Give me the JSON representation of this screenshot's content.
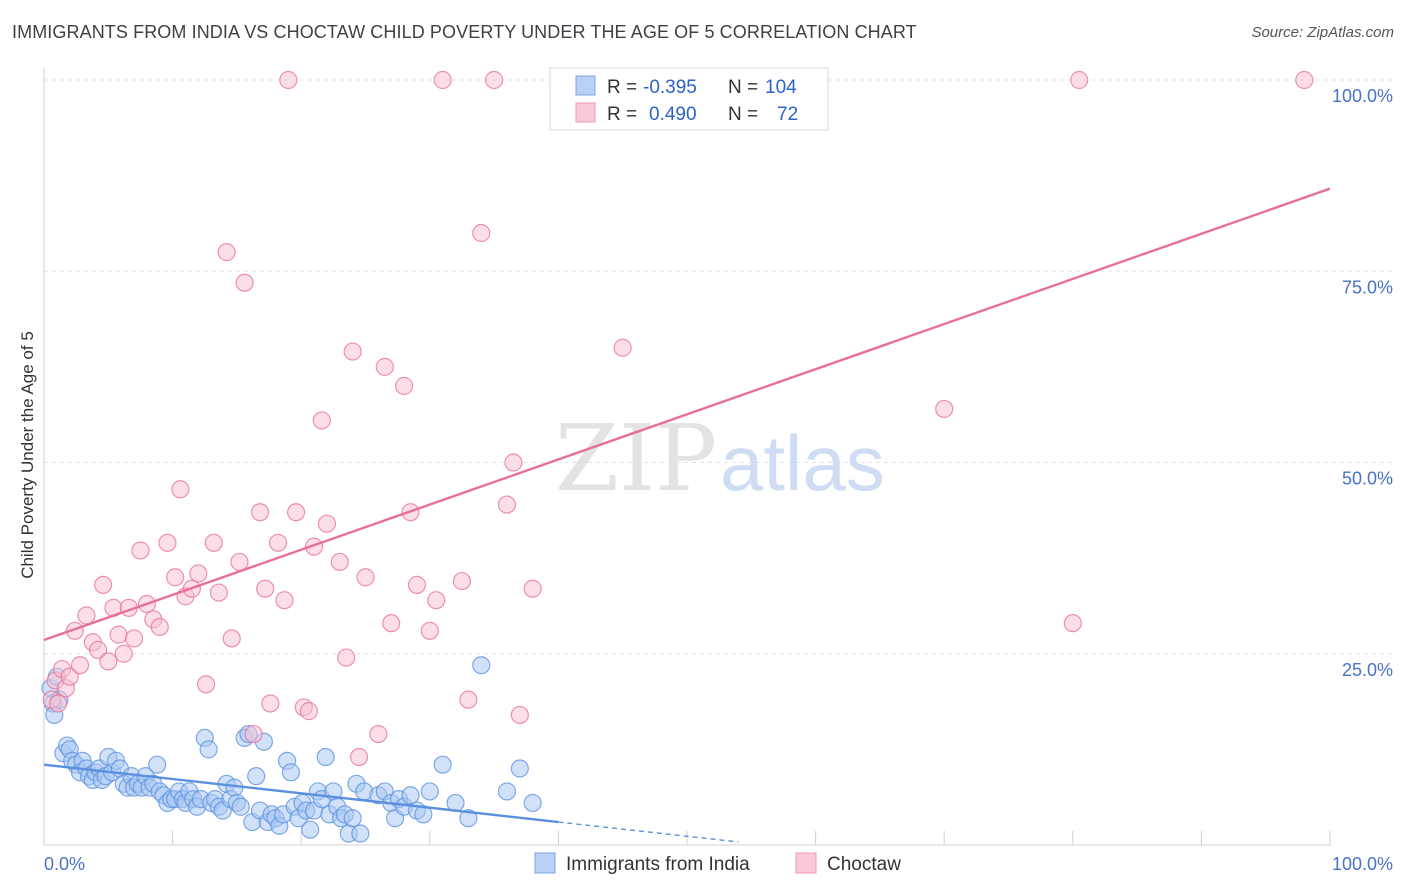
{
  "title": "IMMIGRANTS FROM INDIA VS CHOCTAW CHILD POVERTY UNDER THE AGE OF 5 CORRELATION CHART",
  "source": "Source: ZipAtlas.com",
  "watermark": {
    "zip": "ZIP",
    "atlas": "atlas"
  },
  "legend": {
    "rows": [
      {
        "r_label": "R =",
        "r_value": "-0.395",
        "n_label": "N =",
        "n_value": "104",
        "color": "#8fb4ec"
      },
      {
        "r_label": "R =",
        "r_value": "0.490",
        "n_label": "N =",
        "n_value": "72",
        "color": "#f2a7bf"
      }
    ]
  },
  "bottom_legend": [
    {
      "label": "Immigrants from India",
      "color": "#8fb4ec"
    },
    {
      "label": "Choctaw",
      "color": "#f2a7bf"
    }
  ],
  "chart_data": {
    "type": "scatter",
    "title": "IMMIGRANTS FROM INDIA VS CHOCTAW CHILD POVERTY UNDER THE AGE OF 5 CORRELATION CHART",
    "xlabel": "",
    "ylabel": "Child Poverty Under the Age of 5",
    "xlim": [
      0,
      100
    ],
    "ylim": [
      0,
      100
    ],
    "x_tick_labels": [
      "0.0%",
      "100.0%"
    ],
    "y_tick_labels": [
      "25.0%",
      "50.0%",
      "75.0%",
      "100.0%"
    ],
    "y_ticks": [
      25,
      50,
      75,
      100
    ],
    "grid": true,
    "legend_position": "top-center",
    "series": [
      {
        "name": "Immigrants from India",
        "color": "#5b8fe0",
        "fill": "#a9c8f2",
        "R": -0.395,
        "N": 104,
        "trend": {
          "x": [
            0,
            40
          ],
          "y": [
            10.5,
            3.0
          ]
        },
        "trend_dashed": {
          "x": [
            40,
            54
          ],
          "y": [
            3.0,
            0.4
          ]
        },
        "points": [
          [
            0.5,
            20.5
          ],
          [
            0.7,
            18.5
          ],
          [
            0.8,
            17
          ],
          [
            1,
            22
          ],
          [
            1.2,
            19
          ],
          [
            1.5,
            12
          ],
          [
            1.8,
            13
          ],
          [
            2,
            12.5
          ],
          [
            2.2,
            11
          ],
          [
            2.5,
            10.5
          ],
          [
            2.8,
            9.5
          ],
          [
            3,
            11
          ],
          [
            3.3,
            10
          ],
          [
            3.5,
            9
          ],
          [
            3.8,
            8.5
          ],
          [
            4,
            9.5
          ],
          [
            4.3,
            10
          ],
          [
            4.5,
            8.5
          ],
          [
            4.8,
            9
          ],
          [
            5,
            11.5
          ],
          [
            5.3,
            9.5
          ],
          [
            5.6,
            11
          ],
          [
            5.9,
            10
          ],
          [
            6.2,
            8
          ],
          [
            6.5,
            7.5
          ],
          [
            6.8,
            9
          ],
          [
            7,
            7.5
          ],
          [
            7.3,
            8
          ],
          [
            7.6,
            7.5
          ],
          [
            7.9,
            9
          ],
          [
            8.2,
            7.5
          ],
          [
            8.5,
            8
          ],
          [
            8.8,
            10.5
          ],
          [
            9,
            7
          ],
          [
            9.3,
            6.5
          ],
          [
            9.6,
            5.5
          ],
          [
            9.9,
            6
          ],
          [
            10.2,
            6
          ],
          [
            10.5,
            7
          ],
          [
            10.8,
            6
          ],
          [
            11,
            5.5
          ],
          [
            11.3,
            7
          ],
          [
            11.6,
            6
          ],
          [
            11.9,
            5
          ],
          [
            12.2,
            6
          ],
          [
            12.5,
            14
          ],
          [
            12.8,
            12.5
          ],
          [
            13,
            5.5
          ],
          [
            13.3,
            6
          ],
          [
            13.6,
            5
          ],
          [
            13.9,
            4.5
          ],
          [
            14.2,
            8
          ],
          [
            14.5,
            6
          ],
          [
            14.8,
            7.5
          ],
          [
            15,
            5.5
          ],
          [
            15.3,
            5
          ],
          [
            15.6,
            14
          ],
          [
            15.9,
            14.5
          ],
          [
            16.2,
            3
          ],
          [
            16.5,
            9
          ],
          [
            16.8,
            4.5
          ],
          [
            17.1,
            13.5
          ],
          [
            17.4,
            3
          ],
          [
            17.7,
            4
          ],
          [
            18,
            3.5
          ],
          [
            18.3,
            2.5
          ],
          [
            18.6,
            4
          ],
          [
            18.9,
            11
          ],
          [
            19.2,
            9.5
          ],
          [
            19.5,
            5
          ],
          [
            19.8,
            3.5
          ],
          [
            20.1,
            5.5
          ],
          [
            20.4,
            4.5
          ],
          [
            20.7,
            2
          ],
          [
            21,
            4.5
          ],
          [
            21.3,
            7
          ],
          [
            21.6,
            6
          ],
          [
            21.9,
            11.5
          ],
          [
            22.2,
            4
          ],
          [
            22.5,
            7
          ],
          [
            22.8,
            5
          ],
          [
            23.1,
            3.5
          ],
          [
            23.4,
            4
          ],
          [
            23.7,
            1.5
          ],
          [
            24,
            3.5
          ],
          [
            24.3,
            8
          ],
          [
            24.6,
            1.5
          ],
          [
            24.9,
            7
          ],
          [
            26,
            6.5
          ],
          [
            26.5,
            7
          ],
          [
            27,
            5.5
          ],
          [
            27.3,
            3.5
          ],
          [
            27.6,
            6
          ],
          [
            28,
            5
          ],
          [
            28.5,
            6.5
          ],
          [
            29,
            4.5
          ],
          [
            29.5,
            4
          ],
          [
            30,
            7
          ],
          [
            31,
            10.5
          ],
          [
            32,
            5.5
          ],
          [
            33,
            3.5
          ],
          [
            34,
            23.5
          ],
          [
            36,
            7
          ],
          [
            37,
            10
          ],
          [
            38,
            5.5
          ]
        ]
      },
      {
        "name": "Choctaw",
        "color": "#e76f98",
        "fill": "#f7c2d3",
        "R": 0.49,
        "N": 72,
        "trend": {
          "x": [
            0,
            100
          ],
          "y": [
            26.8,
            85.8
          ]
        },
        "points": [
          [
            0.6,
            19
          ],
          [
            0.9,
            21.5
          ],
          [
            1.1,
            18.5
          ],
          [
            1.4,
            23
          ],
          [
            1.7,
            20.5
          ],
          [
            2,
            22
          ],
          [
            2.4,
            28
          ],
          [
            2.8,
            23.5
          ],
          [
            3.3,
            30
          ],
          [
            3.8,
            26.5
          ],
          [
            4.2,
            25.5
          ],
          [
            4.6,
            34
          ],
          [
            5,
            24
          ],
          [
            5.4,
            31
          ],
          [
            5.8,
            27.5
          ],
          [
            6.2,
            25
          ],
          [
            6.6,
            31
          ],
          [
            7,
            27
          ],
          [
            7.5,
            38.5
          ],
          [
            8,
            31.5
          ],
          [
            8.5,
            29.5
          ],
          [
            9,
            28.5
          ],
          [
            9.6,
            39.5
          ],
          [
            10.2,
            35
          ],
          [
            10.6,
            46.5
          ],
          [
            11,
            32.5
          ],
          [
            11.5,
            33.5
          ],
          [
            12,
            35.5
          ],
          [
            12.6,
            21
          ],
          [
            13.2,
            39.5
          ],
          [
            13.6,
            33
          ],
          [
            14.2,
            77.5
          ],
          [
            14.6,
            27
          ],
          [
            15.2,
            37
          ],
          [
            15.6,
            73.5
          ],
          [
            16.3,
            14.5
          ],
          [
            16.8,
            43.5
          ],
          [
            17.2,
            33.5
          ],
          [
            17.6,
            18.5
          ],
          [
            18.2,
            39.5
          ],
          [
            18.7,
            32
          ],
          [
            19,
            100
          ],
          [
            19.6,
            43.5
          ],
          [
            20.2,
            18
          ],
          [
            20.6,
            17.5
          ],
          [
            21,
            39
          ],
          [
            21.6,
            55.5
          ],
          [
            22,
            42
          ],
          [
            23,
            37
          ],
          [
            23.5,
            24.5
          ],
          [
            24,
            64.5
          ],
          [
            24.5,
            11.5
          ],
          [
            25,
            35
          ],
          [
            26,
            14.5
          ],
          [
            26.5,
            62.5
          ],
          [
            27,
            29
          ],
          [
            28,
            60
          ],
          [
            28.5,
            43.5
          ],
          [
            29,
            34
          ],
          [
            30,
            28
          ],
          [
            30.5,
            32
          ],
          [
            31,
            100
          ],
          [
            32.5,
            34.5
          ],
          [
            33,
            19
          ],
          [
            34,
            80
          ],
          [
            35,
            100
          ],
          [
            36,
            44.5
          ],
          [
            36.5,
            50
          ],
          [
            37,
            17
          ],
          [
            38,
            33.5
          ],
          [
            45,
            65
          ],
          [
            70,
            57
          ],
          [
            80,
            29
          ],
          [
            80.5,
            100
          ],
          [
            98,
            100
          ]
        ]
      }
    ]
  }
}
